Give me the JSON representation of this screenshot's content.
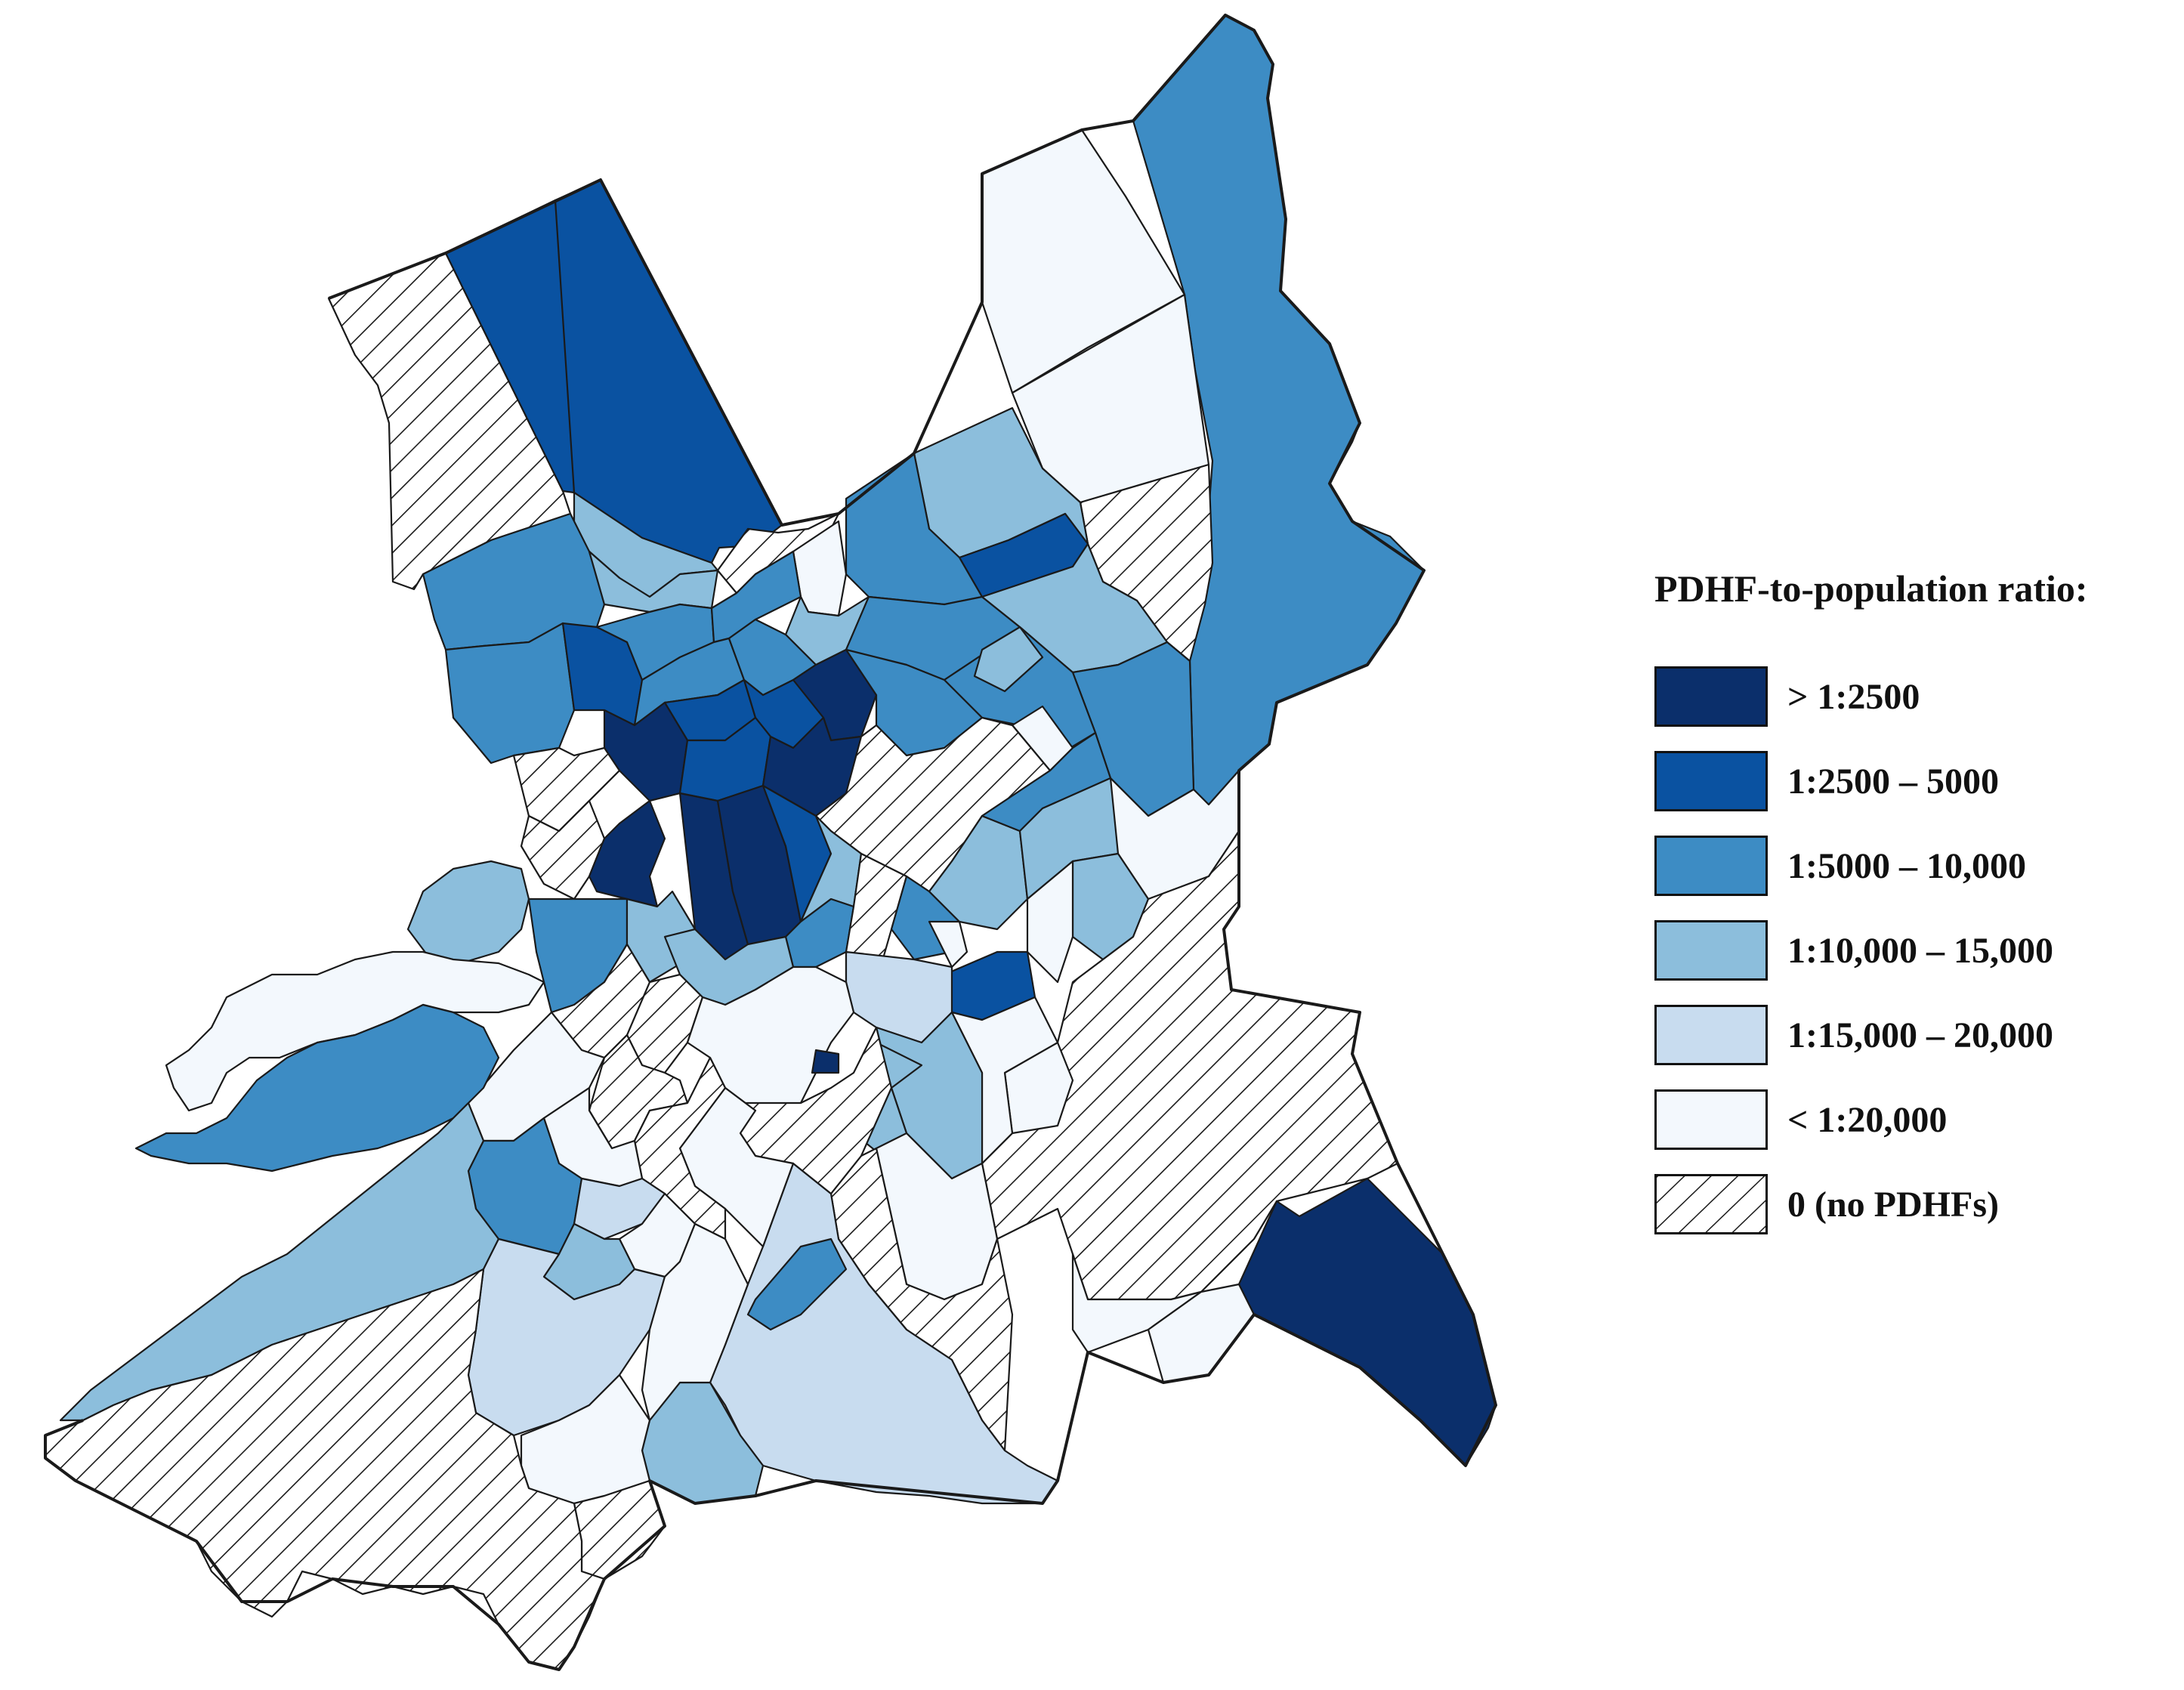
{
  "legend": {
    "title": "PDHF-to-population ratio:",
    "classes": [
      {
        "label": "> 1:2500",
        "color": "#0b2f6b"
      },
      {
        "label": "1:2500 – 5000",
        "color": "#0a52a1"
      },
      {
        "label": "1:5000 – 10,000",
        "color": "#3d8cc4"
      },
      {
        "label": "1:10,000 – 15,000",
        "color": "#8cbedc"
      },
      {
        "label": "1:15,000 – 20,000",
        "color": "#c8dcef"
      },
      {
        "label": "< 1:20,000",
        "color": "#f3f8fd"
      },
      {
        "label": "0 (no PDHFs)",
        "color": "hatch"
      }
    ]
  },
  "colors": {
    "outline": "#1a1a1a",
    "hatch_line": "#1a1a1a",
    "hatch_background": "#ffffff"
  }
}
